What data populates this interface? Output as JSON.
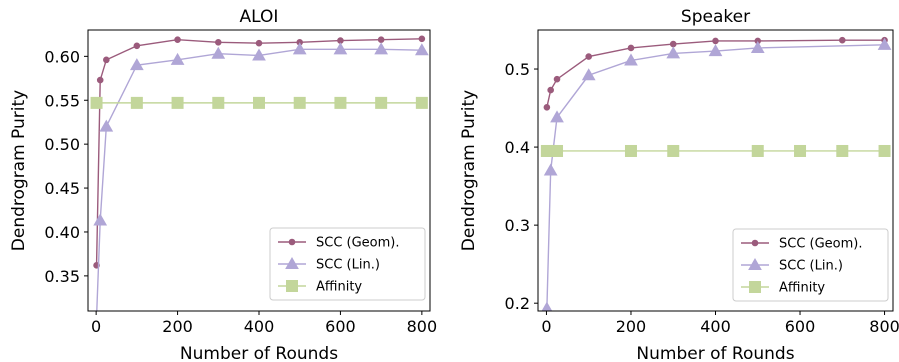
{
  "chart_data": [
    {
      "type": "line",
      "title": "ALOI",
      "xlabel": "Number of Rounds",
      "ylabel": "Dendrogram Purity",
      "xlim": [
        -20,
        820
      ],
      "ylim": [
        0.31,
        0.63
      ],
      "xticks": [
        0,
        200,
        400,
        600,
        800
      ],
      "yticks": [
        0.35,
        0.4,
        0.45,
        0.5,
        0.55,
        0.6
      ],
      "ytick_labels": [
        "0.35",
        "0.40",
        "0.45",
        "0.50",
        "0.55",
        "0.60"
      ],
      "grid": false,
      "legend_position": "bottom-right",
      "series": [
        {
          "name": "SCC (Geom).",
          "color": "#9b5b7c",
          "marker": "circle",
          "x": [
            1,
            10,
            25,
            100,
            200,
            300,
            400,
            500,
            600,
            700,
            800
          ],
          "y": [
            0.362,
            0.573,
            0.596,
            0.612,
            0.619,
            0.616,
            0.615,
            0.616,
            0.618,
            0.619,
            0.62
          ]
        },
        {
          "name": "SCC (Lin.)",
          "color": "#b0a6d6",
          "marker": "triangle",
          "x": [
            1,
            10,
            25,
            100,
            200,
            300,
            400,
            500,
            600,
            700,
            800
          ],
          "y": [
            0.303,
            0.413,
            0.52,
            0.59,
            0.596,
            0.603,
            0.601,
            0.608,
            0.608,
            0.608,
            0.607
          ]
        },
        {
          "name": "Affinity",
          "color": "#c3d69b",
          "marker": "square",
          "x": [
            1,
            100,
            200,
            300,
            400,
            500,
            600,
            700,
            800
          ],
          "y": [
            0.547,
            0.547,
            0.547,
            0.547,
            0.547,
            0.547,
            0.547,
            0.547,
            0.547
          ]
        }
      ]
    },
    {
      "type": "line",
      "title": "Speaker",
      "xlabel": "Number of Rounds",
      "ylabel": "Dendrogram Purity",
      "xlim": [
        -20,
        820
      ],
      "ylim": [
        0.19,
        0.55
      ],
      "xticks": [
        0,
        200,
        400,
        600,
        800
      ],
      "yticks": [
        0.2,
        0.3,
        0.4,
        0.5
      ],
      "ytick_labels": [
        "0.2",
        "0.3",
        "0.4",
        "0.5"
      ],
      "grid": false,
      "legend_position": "bottom-right",
      "series": [
        {
          "name": "SCC (Geom).",
          "color": "#9b5b7c",
          "marker": "circle",
          "x": [
            1,
            10,
            25,
            100,
            200,
            300,
            400,
            500,
            700,
            800
          ],
          "y": [
            0.451,
            0.473,
            0.487,
            0.516,
            0.527,
            0.532,
            0.536,
            0.536,
            0.537,
            0.537
          ]
        },
        {
          "name": "SCC (Lin.)",
          "color": "#b0a6d6",
          "marker": "triangle",
          "x": [
            1,
            10,
            25,
            100,
            200,
            300,
            400,
            500,
            800
          ],
          "y": [
            0.193,
            0.37,
            0.438,
            0.492,
            0.511,
            0.52,
            0.523,
            0.527,
            0.531
          ]
        },
        {
          "name": "Affinity",
          "color": "#c3d69b",
          "marker": "square",
          "x": [
            1,
            10,
            25,
            200,
            300,
            500,
            600,
            700,
            800
          ],
          "y": [
            0.395,
            0.395,
            0.395,
            0.395,
            0.395,
            0.395,
            0.395,
            0.395,
            0.395
          ]
        }
      ]
    }
  ]
}
